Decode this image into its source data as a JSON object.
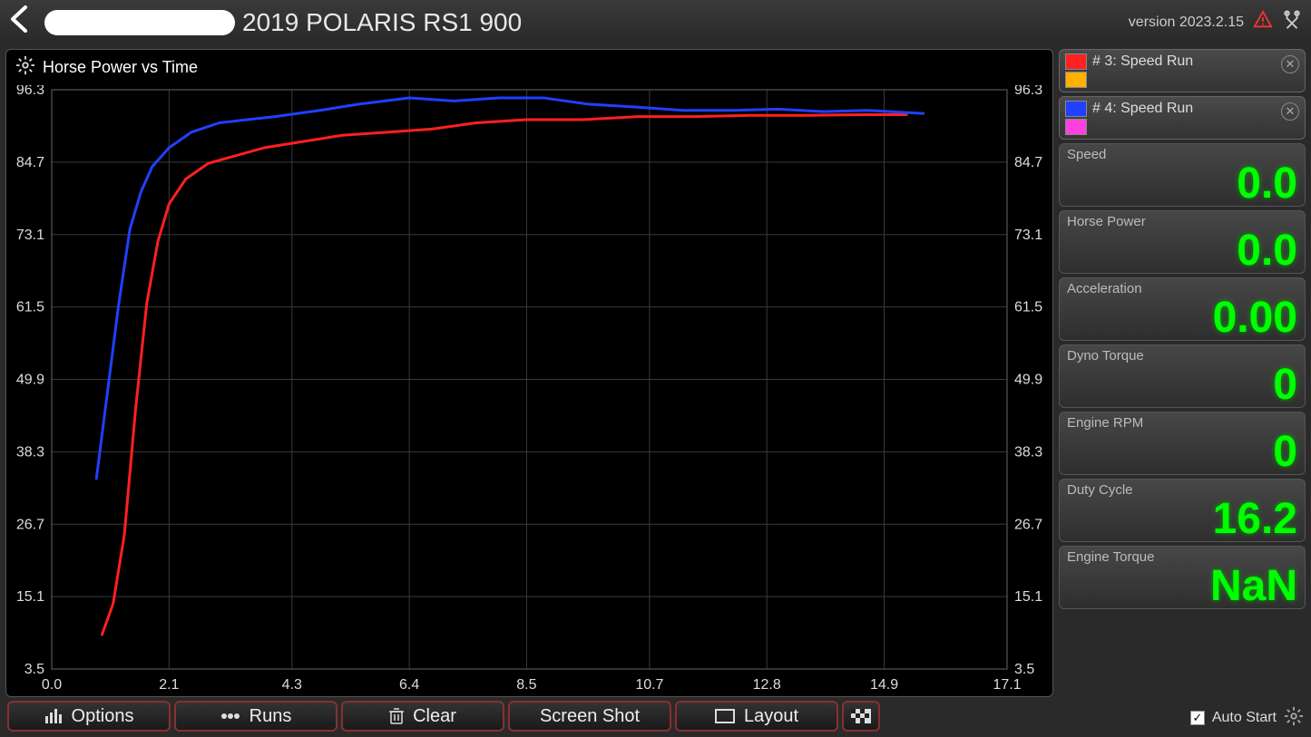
{
  "header": {
    "title": "2019 POLARIS RS1 900",
    "version": "version 2023.2.15"
  },
  "chart": {
    "title": "Horse Power vs Time",
    "type": "line",
    "background_color": "#000000",
    "grid_color": "#3a3a3a",
    "axis_text_color": "#dddddd",
    "axis_fontsize": 16,
    "line_width": 3,
    "xlim": [
      0.0,
      17.1
    ],
    "ylim": [
      3.5,
      96.3
    ],
    "xticks": [
      0.0,
      2.1,
      4.3,
      6.4,
      8.5,
      10.7,
      12.8,
      14.9,
      17.1
    ],
    "yticks": [
      3.5,
      15.1,
      26.7,
      38.3,
      49.9,
      61.5,
      73.1,
      84.7,
      96.3
    ],
    "series": [
      {
        "name": "# 3: Speed Run",
        "color": "#ff2020",
        "secondary_color": "#ffb000",
        "points": [
          [
            0.9,
            9.0
          ],
          [
            1.1,
            14.0
          ],
          [
            1.3,
            25.0
          ],
          [
            1.5,
            45.0
          ],
          [
            1.7,
            62.0
          ],
          [
            1.9,
            72.0
          ],
          [
            2.1,
            78.0
          ],
          [
            2.4,
            82.0
          ],
          [
            2.8,
            84.5
          ],
          [
            3.2,
            85.5
          ],
          [
            3.8,
            87.0
          ],
          [
            4.5,
            88.0
          ],
          [
            5.2,
            89.0
          ],
          [
            6.0,
            89.5
          ],
          [
            6.8,
            90.0
          ],
          [
            7.6,
            91.0
          ],
          [
            8.5,
            91.5
          ],
          [
            9.5,
            91.5
          ],
          [
            10.5,
            92.0
          ],
          [
            11.5,
            92.0
          ],
          [
            12.5,
            92.2
          ],
          [
            13.5,
            92.2
          ],
          [
            14.5,
            92.3
          ],
          [
            15.3,
            92.3
          ]
        ]
      },
      {
        "name": "# 4: Speed Run",
        "color": "#2040ff",
        "secondary_color": "#ff40e0",
        "points": [
          [
            0.8,
            34.0
          ],
          [
            1.0,
            48.0
          ],
          [
            1.2,
            62.0
          ],
          [
            1.4,
            74.0
          ],
          [
            1.6,
            80.0
          ],
          [
            1.8,
            84.0
          ],
          [
            2.1,
            87.0
          ],
          [
            2.5,
            89.5
          ],
          [
            3.0,
            91.0
          ],
          [
            3.5,
            91.5
          ],
          [
            4.0,
            92.0
          ],
          [
            4.8,
            93.0
          ],
          [
            5.5,
            94.0
          ],
          [
            6.4,
            95.0
          ],
          [
            7.2,
            94.5
          ],
          [
            8.0,
            95.0
          ],
          [
            8.8,
            95.0
          ],
          [
            9.6,
            94.0
          ],
          [
            10.5,
            93.5
          ],
          [
            11.3,
            93.0
          ],
          [
            12.2,
            93.0
          ],
          [
            13.0,
            93.2
          ],
          [
            13.8,
            92.8
          ],
          [
            14.6,
            93.0
          ],
          [
            15.6,
            92.5
          ]
        ]
      }
    ]
  },
  "runs": [
    {
      "label": "# 3:  Speed Run",
      "primary": "#ff2020",
      "secondary": "#ffb000"
    },
    {
      "label": "# 4:  Speed Run",
      "primary": "#2040ff",
      "secondary": "#ff40e0"
    }
  ],
  "metrics": [
    {
      "label": "Speed",
      "value": "0.0"
    },
    {
      "label": "Horse Power",
      "value": "0.0"
    },
    {
      "label": "Acceleration",
      "value": "0.00"
    },
    {
      "label": "Dyno Torque",
      "value": "0"
    },
    {
      "label": "Engine RPM",
      "value": "0"
    },
    {
      "label": "Duty Cycle",
      "value": "16.2"
    },
    {
      "label": "Engine Torque",
      "value": "NaN"
    }
  ],
  "toolbar": {
    "options": "Options",
    "runs": "Runs",
    "clear": "Clear",
    "screenshot": "Screen Shot",
    "layout": "Layout"
  },
  "footer": {
    "auto_start": "Auto Start",
    "checked": true
  },
  "colors": {
    "metric_value": "#00ff00",
    "button_border": "#883030"
  }
}
